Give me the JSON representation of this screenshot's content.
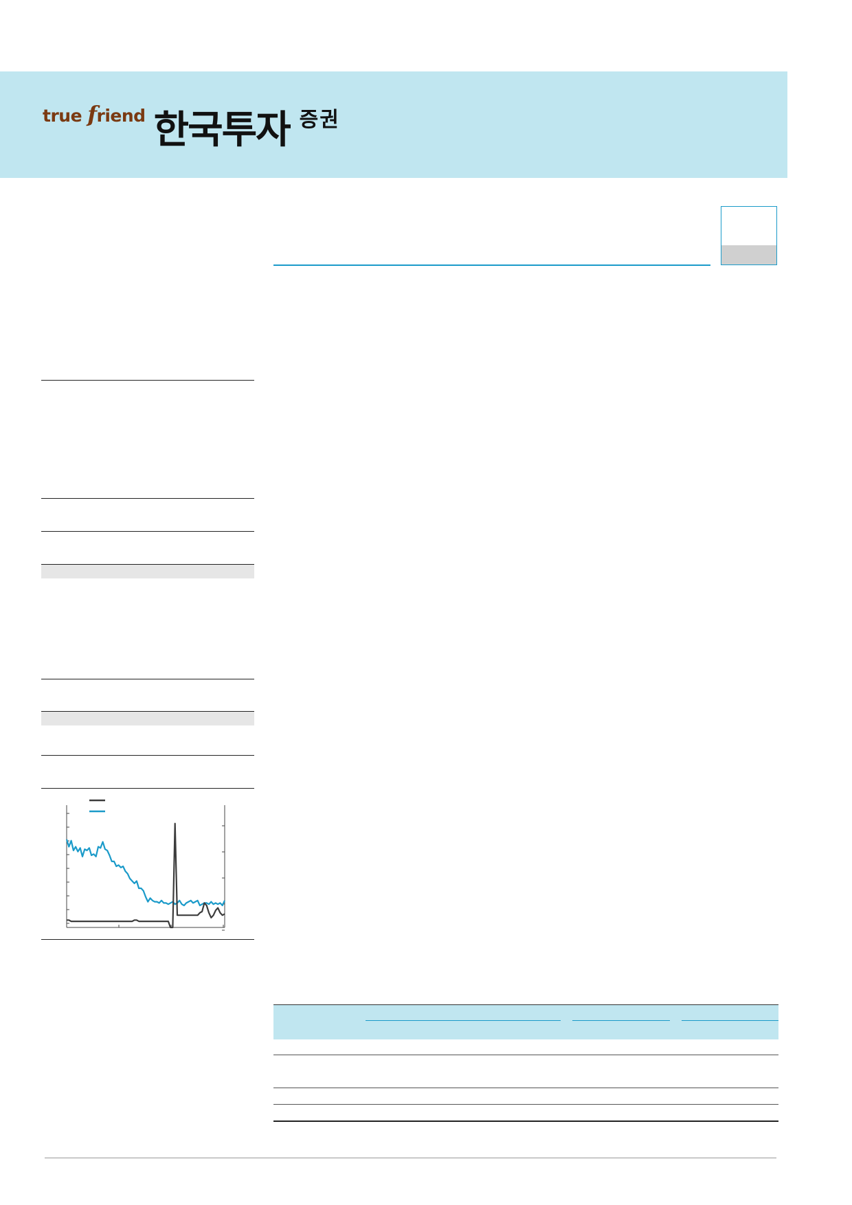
{
  "header": {
    "logo_en_prefix": "true ",
    "logo_en_f": "f",
    "logo_en_suffix": "riend",
    "logo_ko": "한국투자",
    "logo_ko_small": "증권"
  },
  "colors": {
    "banner": "#c0e6f0",
    "accent_blue": "#1a9ac9",
    "brand_brown": "#7a3a12",
    "series_dark": "#3c3c3c",
    "series_blue": "#1a9ac9"
  },
  "chart_data": {
    "type": "line",
    "title": "",
    "xlabel": "",
    "ylabel": "",
    "x": [
      0,
      1,
      2,
      3,
      4,
      5,
      6,
      7,
      8,
      9,
      10,
      11,
      12,
      13,
      14,
      15,
      16,
      17,
      18,
      19,
      20,
      21,
      22,
      23,
      24,
      25,
      26,
      27,
      28,
      29,
      30,
      31,
      32,
      33,
      34,
      35,
      36,
      37,
      38,
      39,
      40,
      41,
      42,
      43,
      44,
      45,
      46,
      47,
      48,
      49,
      50,
      51,
      52,
      53,
      54,
      55,
      56,
      57,
      58,
      59,
      60,
      61,
      62,
      63,
      64,
      65,
      66,
      67,
      68,
      69,
      70
    ],
    "xlim": [
      0,
      70
    ],
    "ylim": [
      0,
      100
    ],
    "grid": false,
    "legend": "top-left",
    "series": [
      {
        "color": "#1a9ac9",
        "values": [
          72,
          66,
          71,
          63,
          66,
          62,
          65,
          58,
          64,
          63,
          65,
          59,
          60,
          58,
          66,
          65,
          70,
          64,
          63,
          59,
          54,
          54,
          50,
          51,
          49,
          50,
          46,
          44,
          40,
          38,
          36,
          38,
          32,
          32,
          30,
          25,
          21,
          24,
          22,
          21,
          21,
          20,
          22,
          20,
          20,
          19,
          20,
          21,
          19,
          20,
          22,
          19,
          18,
          20,
          21,
          22,
          20,
          21,
          22,
          18,
          19,
          20,
          20,
          19,
          21,
          19,
          20,
          19,
          20,
          18,
          22
        ]
      },
      {
        "color": "#3c3c3c",
        "values": [
          6,
          6,
          5,
          5,
          5,
          5,
          5,
          5,
          5,
          5,
          5,
          5,
          5,
          5,
          5,
          5,
          5,
          5,
          5,
          5,
          5,
          5,
          5,
          5,
          5,
          5,
          5,
          5,
          5,
          5,
          6,
          6,
          5,
          5,
          5,
          5,
          5,
          5,
          5,
          5,
          5,
          5,
          5,
          5,
          5,
          5,
          0,
          0,
          85,
          10,
          10,
          10,
          10,
          10,
          10,
          10,
          10,
          10,
          10,
          12,
          13,
          20,
          18,
          12,
          8,
          10,
          14,
          16,
          12,
          10,
          11
        ]
      }
    ]
  }
}
